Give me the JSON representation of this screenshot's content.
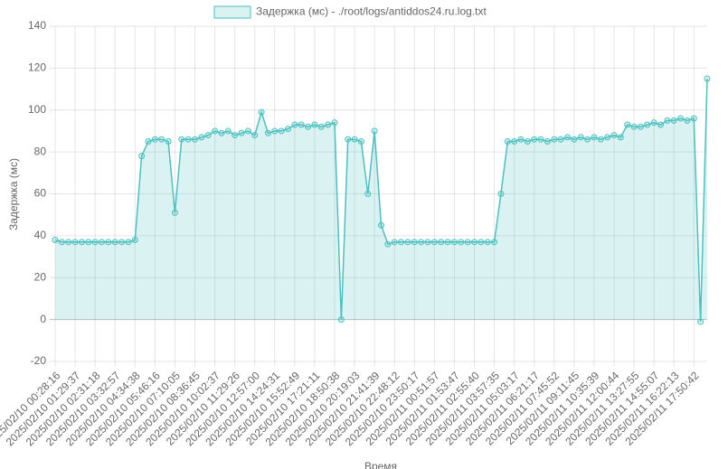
{
  "chart_data": {
    "type": "line",
    "x_label": "Время",
    "y_label": "Задержка (мс)",
    "categories": [
      "2025/02/10 00:28:16",
      null,
      null,
      "2025/02/10 01:29:37",
      null,
      null,
      "2025/02/10 02:31:18",
      null,
      null,
      "2025/02/10 03:32:57",
      null,
      null,
      "2025/02/10 04:34:38",
      null,
      null,
      "2025/02/10 05:46:16",
      null,
      null,
      "2025/02/10 07:10:05",
      null,
      null,
      "2025/02/10 08:36:45",
      null,
      null,
      "2025/02/10 10:02:37",
      null,
      null,
      "2025/02/10 11:29:26",
      null,
      null,
      "2025/02/10 12:57:00",
      null,
      null,
      "2025/02/10 14:24:31",
      null,
      null,
      "2025/02/10 15:52:49",
      null,
      null,
      "2025/02/10 17:21:11",
      null,
      null,
      "2025/02/10 18:50:38",
      null,
      null,
      "2025/02/10 20:19:03",
      null,
      null,
      "2025/02/10 21:41:39",
      null,
      null,
      "2025/02/10 22:48:12",
      null,
      null,
      "2025/02/10 23:50:17",
      null,
      null,
      "2025/02/11 00:51:57",
      null,
      null,
      "2025/02/11 01:53:47",
      null,
      null,
      "2025/02/11 02:55:40",
      null,
      null,
      "2025/02/11 03:57:35",
      null,
      null,
      "2025/02/11 05:03:17",
      null,
      null,
      "2025/02/11 06:21:17",
      null,
      null,
      "2025/02/11 07:45:52",
      null,
      null,
      "2025/02/11 09:11:45",
      null,
      null,
      "2025/02/11 10:35:39",
      null,
      null,
      "2025/02/11 12:00:44",
      null,
      null,
      "2025/02/11 13:27:55",
      null,
      null,
      "2025/02/11 14:55:07",
      null,
      null,
      "2025/02/11 16:22:13",
      null,
      null,
      "2025/02/11 17:50:42",
      null,
      null
    ],
    "series": [
      {
        "name": "Задержка (мс) - ./root/logs/antiddos24.ru.log.txt",
        "color": "#4bc0c0",
        "fill": "rgba(75,192,192,0.2)",
        "values": [
          38,
          37,
          37,
          37,
          37,
          37,
          37,
          37,
          37,
          37,
          37,
          37,
          38,
          78,
          85,
          86,
          86,
          85,
          51,
          86,
          86,
          86,
          87,
          88,
          90,
          89,
          90,
          88,
          89,
          90,
          88,
          99,
          89,
          90,
          90,
          91,
          93,
          93,
          92,
          93,
          92,
          93,
          94,
          0,
          86,
          86,
          85,
          60,
          90,
          45,
          36,
          37,
          37,
          37,
          37,
          37,
          37,
          37,
          37,
          37,
          37,
          37,
          37,
          37,
          37,
          37,
          37,
          60,
          85,
          85,
          86,
          85,
          86,
          86,
          85,
          86,
          86,
          87,
          86,
          87,
          86,
          87,
          86,
          87,
          88,
          87,
          93,
          92,
          92,
          93,
          94,
          93,
          95,
          95,
          96,
          95,
          96,
          -1,
          115
        ]
      }
    ],
    "ylim": [
      -20,
      140
    ],
    "yticks": [
      -20,
      0,
      20,
      40,
      60,
      80,
      100,
      120,
      140
    ],
    "grid": true
  }
}
